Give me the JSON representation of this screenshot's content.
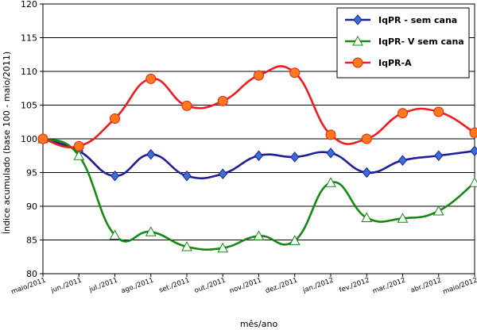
{
  "chart_data": {
    "type": "line",
    "xlabel": "mês/ano",
    "ylabel": "Índice acumulado (base 100 - maio/2011)",
    "ylim": [
      80,
      120
    ],
    "yticks": [
      80,
      85,
      90,
      95,
      100,
      105,
      110,
      115,
      120
    ],
    "grid": true,
    "legend_position": "top-right",
    "categories": [
      "maio/2011",
      "jun./2011",
      "jul./2011",
      "ago./2011",
      "set./2011",
      "out./2011",
      "nov./2011",
      "dez./2011",
      "jan./2012",
      "fev./2012",
      "mar./2012",
      "abr./2012",
      "maio/2012"
    ],
    "series": [
      {
        "name": "IqPR - sem cana",
        "color": "#1f1f9a",
        "marker": "diamond",
        "marker_color": "#3b6fd6",
        "values": [
          100,
          98.2,
          94.5,
          97.7,
          94.5,
          94.8,
          97.5,
          97.3,
          97.9,
          95.0,
          96.8,
          97.5,
          98.2
        ]
      },
      {
        "name": "IqPR- V sem cana",
        "color": "#138a13",
        "marker": "triangle",
        "marker_color": "#ffffff",
        "values": [
          100,
          97.5,
          85.7,
          86.2,
          84.0,
          83.8,
          85.6,
          84.9,
          93.5,
          88.3,
          88.2,
          89.3,
          93.5
        ]
      },
      {
        "name": "IqPR-A",
        "color": "#ee1c1c",
        "marker": "circle",
        "marker_color": "#ff7a1a",
        "values": [
          100,
          98.9,
          103.0,
          108.9,
          104.9,
          105.6,
          109.4,
          109.8,
          100.6,
          100.0,
          103.8,
          104.0,
          100.9
        ]
      }
    ]
  }
}
